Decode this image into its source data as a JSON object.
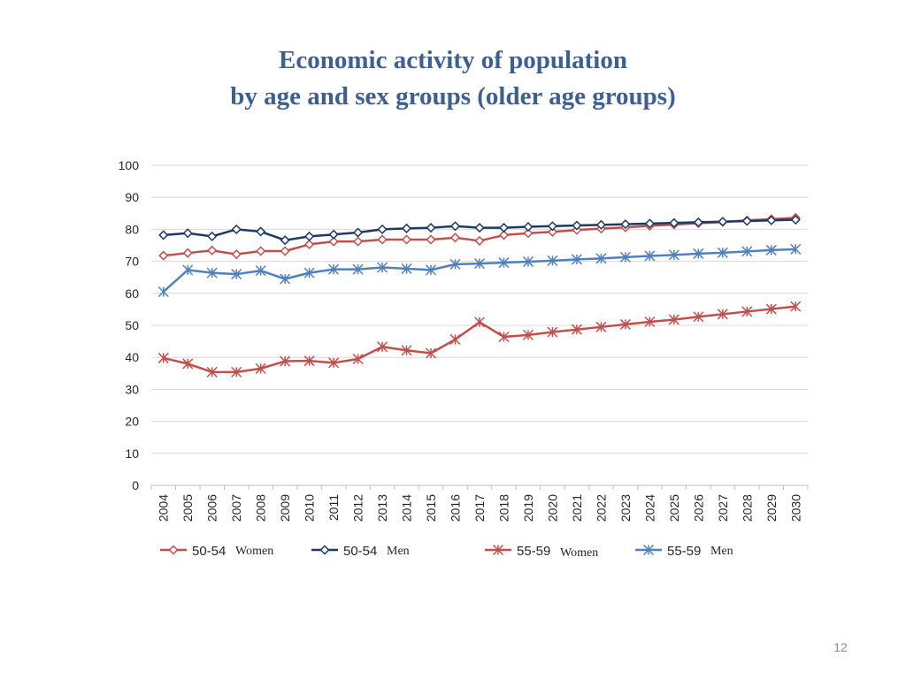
{
  "slide": {
    "title_line1": "Economic activity of population",
    "title_line2": "by age and sex groups (older age groups)",
    "page_number": "12"
  },
  "colors": {
    "title": "#3f5f8f",
    "women_50_54": "#c0504d",
    "men_50_54": "#1f3864",
    "women_55_59": "#c0504d",
    "men_55_59": "#4f81bd",
    "grid": "#d9d9d9"
  },
  "chart_data": {
    "type": "line",
    "title": "",
    "xlabel": "",
    "ylabel": "",
    "ylim": [
      0,
      100
    ],
    "yticks": [
      0,
      10,
      20,
      30,
      40,
      50,
      60,
      70,
      80,
      90,
      100
    ],
    "grid": true,
    "legend_position": "bottom",
    "categories": [
      "2004",
      "2005",
      "2006",
      "2007",
      "2008",
      "2009",
      "2010",
      "2011",
      "2012",
      "2013",
      "2014",
      "2015",
      "2016",
      "2017",
      "2018",
      "2019",
      "2020",
      "2021",
      "2022",
      "2023",
      "2024",
      "2025",
      "2026",
      "2027",
      "2028",
      "2029",
      "2030"
    ],
    "series": [
      {
        "name": "50-54",
        "suffix": "Women",
        "marker": "diamond",
        "color": "#c0504d",
        "values": [
          71.8,
          72.6,
          73.4,
          72.2,
          73.2,
          73.2,
          75.3,
          76.2,
          76.2,
          76.8,
          76.8,
          76.8,
          77.4,
          76.4,
          78.2,
          78.8,
          79.2,
          79.8,
          80.2,
          80.6,
          81.1,
          81.5,
          81.9,
          82.3,
          82.8,
          83.2,
          83.6
        ]
      },
      {
        "name": "50-54",
        "suffix": "Men",
        "marker": "diamond",
        "color": "#1f3864",
        "values": [
          78.2,
          78.8,
          77.8,
          80.0,
          79.3,
          76.6,
          77.8,
          78.4,
          79.0,
          80.0,
          80.3,
          80.5,
          81.0,
          80.5,
          80.5,
          80.8,
          81.0,
          81.2,
          81.4,
          81.6,
          81.8,
          82.0,
          82.2,
          82.4,
          82.6,
          82.8,
          83.0
        ]
      },
      {
        "name": "55-59",
        "suffix": "Women",
        "marker": "star",
        "color": "#c0504d",
        "values": [
          39.8,
          38.0,
          35.4,
          35.4,
          36.5,
          38.8,
          38.9,
          38.3,
          39.5,
          43.3,
          42.2,
          41.3,
          45.6,
          51.0,
          46.4,
          47.0,
          47.9,
          48.7,
          49.5,
          50.3,
          51.1,
          51.8,
          52.7,
          53.5,
          54.3,
          55.1,
          55.9
        ]
      },
      {
        "name": "55-59",
        "suffix": "Men",
        "marker": "star",
        "color": "#4f81bd",
        "values": [
          60.5,
          67.3,
          66.4,
          66.0,
          67.1,
          64.5,
          66.4,
          67.5,
          67.5,
          68.1,
          67.7,
          67.3,
          69.1,
          69.3,
          69.6,
          69.9,
          70.2,
          70.6,
          70.9,
          71.3,
          71.7,
          72.0,
          72.4,
          72.7,
          73.1,
          73.5,
          73.8
        ]
      }
    ]
  }
}
